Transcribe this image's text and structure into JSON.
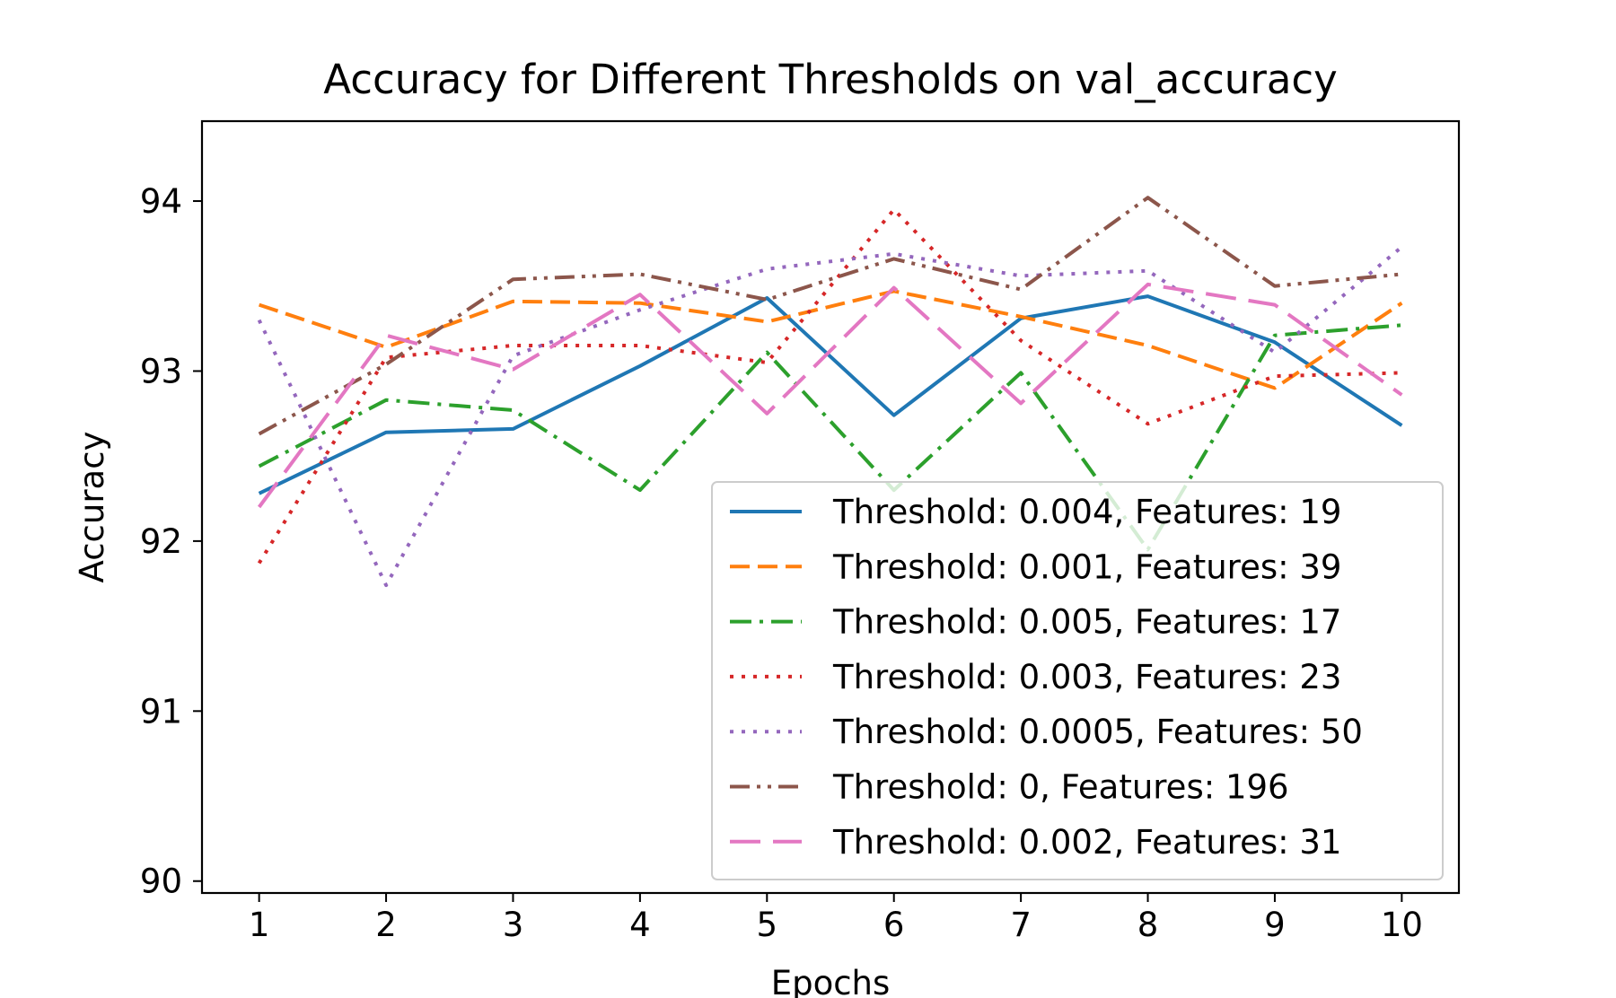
{
  "chart_data": {
    "type": "line",
    "title": "Accuracy for Different Thresholds on val_accuracy",
    "xlabel": "Epochs",
    "ylabel": "Accuracy",
    "x": [
      1,
      2,
      3,
      4,
      5,
      6,
      7,
      8,
      9,
      10
    ],
    "xticks": [
      "1",
      "2",
      "3",
      "4",
      "5",
      "6",
      "7",
      "8",
      "9",
      "10"
    ],
    "yticks": [
      "90",
      "91",
      "92",
      "93",
      "94"
    ],
    "xlim": [
      0.55,
      10.45
    ],
    "ylim": [
      89.93,
      94.47
    ],
    "grid": false,
    "legend_position": "lower-right",
    "series": [
      {
        "name": "Threshold: 0.004, Features: 19",
        "color": "#1f77b4",
        "dash": "solid",
        "values": [
          92.28,
          92.64,
          92.66,
          93.03,
          93.43,
          92.74,
          93.31,
          93.44,
          93.17,
          92.68
        ]
      },
      {
        "name": "Threshold: 0.001, Features: 39",
        "color": "#ff7f0e",
        "dash": "dashed",
        "values": [
          93.39,
          93.14,
          93.41,
          93.4,
          93.29,
          93.47,
          93.32,
          93.15,
          92.9,
          93.4
        ]
      },
      {
        "name": "Threshold: 0.005, Features: 17",
        "color": "#2ca02c",
        "dash": "dashdot",
        "values": [
          92.44,
          92.83,
          92.77,
          92.3,
          93.11,
          92.3,
          92.99,
          91.95,
          93.21,
          93.27
        ]
      },
      {
        "name": "Threshold: 0.003, Features: 23",
        "color": "#d62728",
        "dash": "dotted",
        "values": [
          91.87,
          93.08,
          93.15,
          93.15,
          93.05,
          93.95,
          93.18,
          92.69,
          92.97,
          92.99
        ]
      },
      {
        "name": "Threshold: 0.0005, Features: 50",
        "color": "#9467bd",
        "dash": "dotted",
        "values": [
          93.3,
          91.74,
          93.09,
          93.36,
          93.6,
          93.69,
          93.56,
          93.59,
          93.11,
          93.73
        ]
      },
      {
        "name": "Threshold: 0, Features: 196",
        "color": "#8c564b",
        "dash": "dashdotdot",
        "values": [
          92.63,
          93.04,
          93.54,
          93.57,
          93.42,
          93.66,
          93.48,
          94.02,
          93.5,
          93.57
        ]
      },
      {
        "name": "Threshold: 0.002, Features: 31",
        "color": "#e377c2",
        "dash": "longdash",
        "values": [
          92.2,
          93.21,
          93.01,
          93.45,
          92.75,
          93.49,
          92.81,
          93.51,
          93.39,
          92.86
        ]
      }
    ]
  }
}
